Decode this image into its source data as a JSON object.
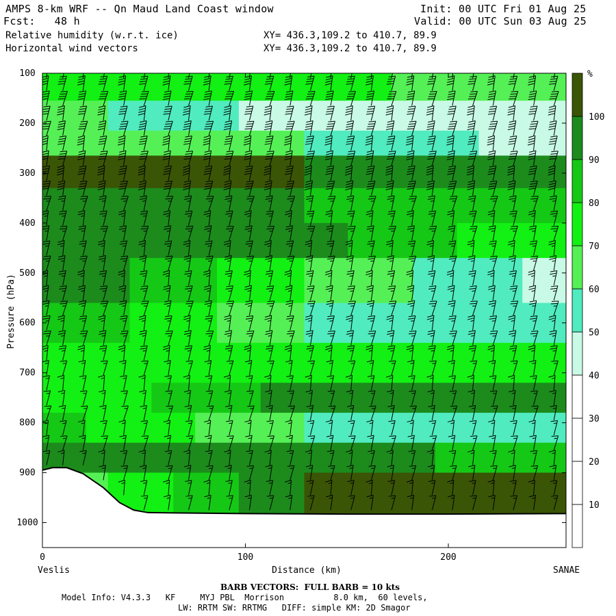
{
  "header": {
    "title": "AMPS 8-km WRF -- Qn Maud Land Coast window",
    "init": "Init: 00 UTC Fri 01 Aug 25",
    "fcst": "Fcst:   48 h",
    "valid": "Valid: 00 UTC Sun 03 Aug 25",
    "field1": "Relative humidity (w.r.t. ice)",
    "field2": "Horizontal wind vectors",
    "xy1": "XY= 436.3,109.2 to 410.7, 89.9",
    "xy2": "XY= 436.3,109.2 to 410.7, 89.9"
  },
  "footer": {
    "barb_note": "BARB VECTORS:  FULL BARB = 10 kts",
    "model_info": "Model Info: V4.3.3   KF     MYJ PBL  Morrison          8.0 km,  60 levels,",
    "model_info2": "LW: RRTM SW: RRTMG   DIFF: simple KM: 2D Smagor"
  },
  "colors": {
    "background": "#ffffff",
    "terrain_line": "#000000",
    "barb": "#000000"
  },
  "chart_data": {
    "type": "heatmap",
    "title": "Relative humidity (w.r.t. ice)",
    "xlabel": "Distance (km)",
    "ylabel": "Pressure (hPa)",
    "x_start_label": "Veslis",
    "x_end_label": "SANAE",
    "xlim": [
      0,
      258
    ],
    "ylim": [
      1050,
      100
    ],
    "x_ticks": [
      0,
      100,
      200
    ],
    "y_ticks": [
      100,
      200,
      300,
      400,
      500,
      600,
      700,
      800,
      900,
      1000
    ],
    "colorbar": {
      "unit": "%",
      "levels": [
        10,
        20,
        30,
        40,
        50,
        60,
        70,
        80,
        90,
        100
      ],
      "colors": [
        "#ffffff",
        "#ffffff",
        "#ffffff",
        "#c8fae6",
        "#50ebbe",
        "#55f055",
        "#13f013",
        "#15c815",
        "#1c8b1c",
        "#3a5505"
      ]
    },
    "terrain_profile": [
      {
        "x": 0,
        "p": 895
      },
      {
        "x": 5,
        "p": 890
      },
      {
        "x": 12,
        "p": 890
      },
      {
        "x": 20,
        "p": 902
      },
      {
        "x": 30,
        "p": 930
      },
      {
        "x": 38,
        "p": 960
      },
      {
        "x": 45,
        "p": 975
      },
      {
        "x": 52,
        "p": 980
      },
      {
        "x": 100,
        "p": 982
      },
      {
        "x": 150,
        "p": 983
      },
      {
        "x": 200,
        "p": 983
      },
      {
        "x": 258,
        "p": 982
      }
    ],
    "rh_bands": [
      {
        "p_top": 100,
        "p_bot": 155,
        "left": 80,
        "mid": 75,
        "right": 60
      },
      {
        "p_top": 155,
        "p_bot": 215,
        "left": 65,
        "mid": 45,
        "right": 35
      },
      {
        "p_top": 215,
        "p_bot": 265,
        "left": 70,
        "mid": 60,
        "right": 45
      },
      {
        "p_top": 265,
        "p_bot": 330,
        "left": 100,
        "mid": 100,
        "right": 90
      },
      {
        "p_top": 330,
        "p_bot": 400,
        "left": 95,
        "mid": 90,
        "right": 85
      },
      {
        "p_top": 400,
        "p_bot": 470,
        "left": 100,
        "mid": 95,
        "right": 70
      },
      {
        "p_top": 470,
        "p_bot": 560,
        "left": 100,
        "mid": 70,
        "right": 45
      },
      {
        "p_top": 560,
        "p_bot": 640,
        "left": 90,
        "mid": 60,
        "right": 55
      },
      {
        "p_top": 640,
        "p_bot": 720,
        "left": 75,
        "mid": 70,
        "right": 80
      },
      {
        "p_top": 720,
        "p_bot": 780,
        "left": 70,
        "mid": 95,
        "right": 100
      },
      {
        "p_top": 780,
        "p_bot": 840,
        "left": 85,
        "mid": 60,
        "right": 55
      },
      {
        "p_top": 840,
        "p_bot": 900,
        "left": 100,
        "mid": 95,
        "right": 85
      },
      {
        "p_top": 900,
        "p_bot": 985,
        "left": 60,
        "mid": 100,
        "right": 100
      }
    ],
    "barbs": {
      "x_positions": [
        2,
        10,
        20,
        30,
        40,
        50,
        62,
        72,
        82,
        92,
        102,
        112,
        122,
        132,
        142,
        152,
        162,
        172,
        182,
        192,
        202,
        212,
        222,
        232,
        242,
        252
      ],
      "levels_hPa": [
        110,
        135,
        165,
        195,
        225,
        255,
        285,
        315,
        345,
        375,
        405,
        435,
        465,
        495,
        525,
        555,
        585,
        615,
        645,
        675,
        705,
        735,
        765,
        795,
        825,
        855,
        885,
        915,
        945,
        975
      ],
      "speed_kts_upper": 40,
      "speed_kts_mid": 25,
      "speed_kts_low": 15
    }
  }
}
